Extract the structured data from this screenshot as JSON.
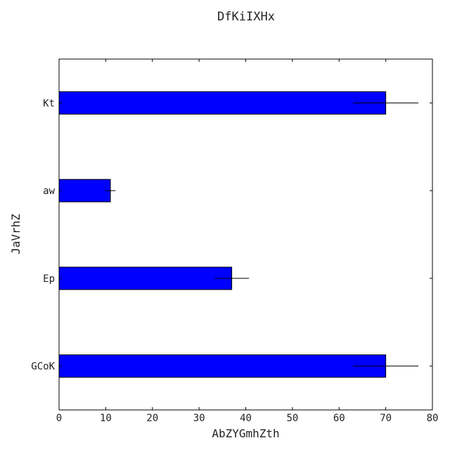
{
  "chart_data": {
    "type": "bar",
    "orientation": "horizontal",
    "title": "DfKiIXHx",
    "xlabel": "AbZYGmhZth",
    "ylabel": "JaVrhZ",
    "categories": [
      "GCoK",
      "Ep",
      "aw",
      "Kt"
    ],
    "values": [
      70,
      37,
      11,
      70
    ],
    "errors": [
      7,
      3.7,
      1.1,
      7
    ],
    "xlim": [
      0,
      80
    ],
    "xticks": [
      0,
      10,
      20,
      30,
      40,
      50,
      60,
      70,
      80
    ],
    "grid": false,
    "bar_color": "#0000ff",
    "error_color": "#000000"
  }
}
